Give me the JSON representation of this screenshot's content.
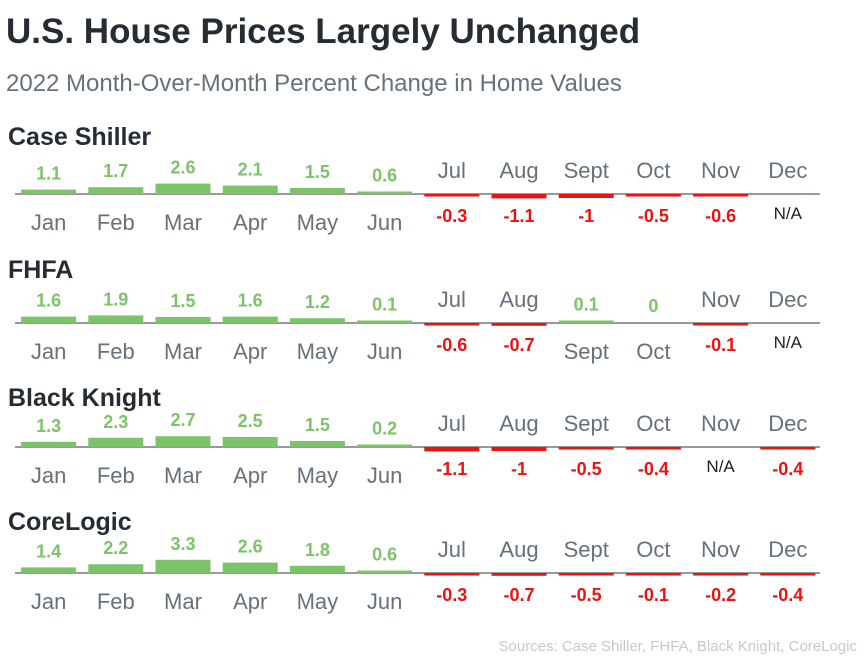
{
  "title": "U.S. House Prices Largely Unchanged",
  "subtitle": "2022 Month-Over-Month Percent Change in Home Values",
  "source": "Sources: Case Shiller, FHFA, Black Knight, CoreLogic",
  "colors": {
    "positive": "#7cc36a",
    "negative": "#ee1111",
    "axis": "#333333",
    "title": "#262c33",
    "label": "#67717c"
  },
  "chart_data": [
    {
      "type": "bar",
      "title": "Case Shiller",
      "categories": [
        "Jan",
        "Feb",
        "Mar",
        "Apr",
        "May",
        "Jun",
        "Jul",
        "Aug",
        "Sept",
        "Oct",
        "Nov",
        "Dec"
      ],
      "values": [
        1.1,
        1.7,
        2.6,
        2.1,
        1.5,
        0.6,
        -0.3,
        -1.1,
        -1,
        -0.5,
        -0.6,
        null
      ],
      "labels": [
        "1.1",
        "1.7",
        "2.6",
        "2.1",
        "1.5",
        "0.6",
        "-0.3",
        "-1.1",
        "-1",
        "-0.5",
        "-0.6",
        "N/A"
      ]
    },
    {
      "type": "bar",
      "title": "FHFA",
      "categories": [
        "Jan",
        "Feb",
        "Mar",
        "Apr",
        "May",
        "Jun",
        "Jul",
        "Aug",
        "Sept",
        "Oct",
        "Nov",
        "Dec"
      ],
      "values": [
        1.6,
        1.9,
        1.5,
        1.6,
        1.2,
        0.1,
        -0.6,
        -0.7,
        0.1,
        0,
        -0.1,
        null
      ],
      "labels": [
        "1.6",
        "1.9",
        "1.5",
        "1.6",
        "1.2",
        "0.1",
        "-0.6",
        "-0.7",
        "0.1",
        "0",
        "-0.1",
        "N/A"
      ]
    },
    {
      "type": "bar",
      "title": "Black Knight",
      "categories": [
        "Jan",
        "Feb",
        "Mar",
        "Apr",
        "May",
        "Jun",
        "Jul",
        "Aug",
        "Sept",
        "Oct",
        "Nov",
        "Dec"
      ],
      "values": [
        1.3,
        2.3,
        2.7,
        2.5,
        1.5,
        0.2,
        -1.1,
        -1,
        -0.5,
        -0.4,
        null,
        -0.4
      ],
      "labels": [
        "1.3",
        "2.3",
        "2.7",
        "2.5",
        "1.5",
        "0.2",
        "-1.1",
        "-1",
        "-0.5",
        "-0.4",
        "N/A",
        "-0.4"
      ]
    },
    {
      "type": "bar",
      "title": "CoreLogic",
      "categories": [
        "Jan",
        "Feb",
        "Mar",
        "Apr",
        "May",
        "Jun",
        "Jul",
        "Aug",
        "Sept",
        "Oct",
        "Nov",
        "Dec"
      ],
      "values": [
        1.4,
        2.2,
        3.3,
        2.6,
        1.8,
        0.6,
        -0.3,
        -0.7,
        -0.5,
        -0.1,
        -0.2,
        -0.4
      ],
      "labels": [
        "1.4",
        "2.2",
        "3.3",
        "2.6",
        "1.8",
        "0.6",
        "-0.3",
        "-0.7",
        "-0.5",
        "-0.1",
        "-0.2",
        "-0.4"
      ]
    }
  ]
}
